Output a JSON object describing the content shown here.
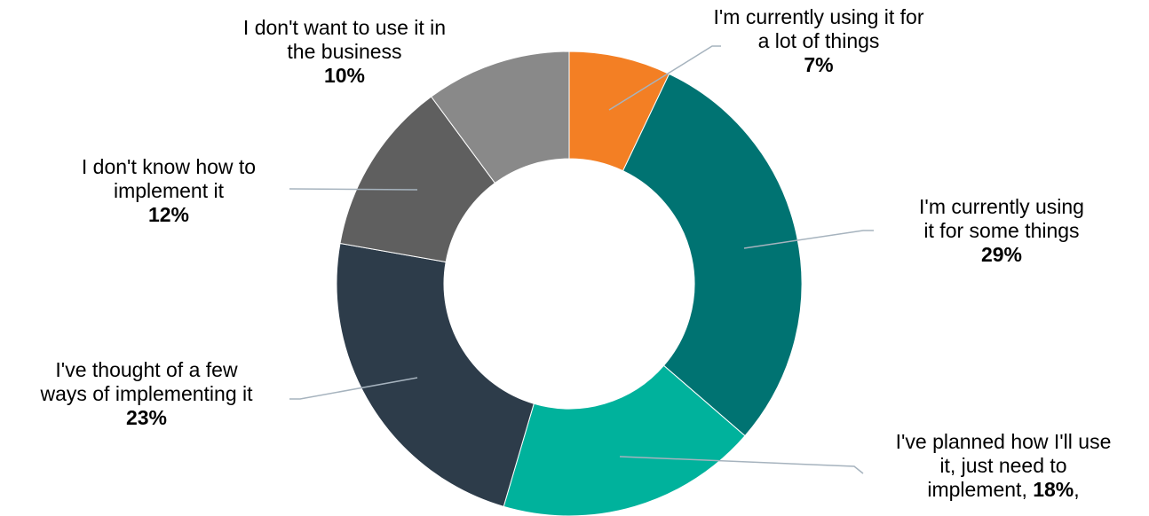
{
  "chart_data": {
    "type": "pie",
    "donut": true,
    "title": "",
    "legend": "none",
    "slices": [
      {
        "label_lines": [
          "I'm currently using it for",
          "a lot of things"
        ],
        "value": 7,
        "value_text": "7%",
        "color": "#F37F24"
      },
      {
        "label_lines": [
          "I'm currently using",
          "it for some things"
        ],
        "value": 29,
        "value_text": "29%",
        "color": "#007372"
      },
      {
        "label_lines": [
          "I've planned how I'll use",
          "it, just need to",
          "implement,"
        ],
        "value": 18,
        "value_text": "18%",
        "value_suffix": ",",
        "color": "#00B29C"
      },
      {
        "label_lines": [
          "I've thought of a few",
          "ways of implementing it"
        ],
        "value": 23,
        "value_text": "23%",
        "color": "#2D3C4A"
      },
      {
        "label_lines": [
          "I don't know how to",
          "implement it"
        ],
        "value": 12,
        "value_text": "12%",
        "color": "#5F5F5F"
      },
      {
        "label_lines": [
          "I don't want to use it in",
          "the business"
        ],
        "value": 10,
        "value_text": "10%",
        "color": "#898989"
      }
    ]
  }
}
